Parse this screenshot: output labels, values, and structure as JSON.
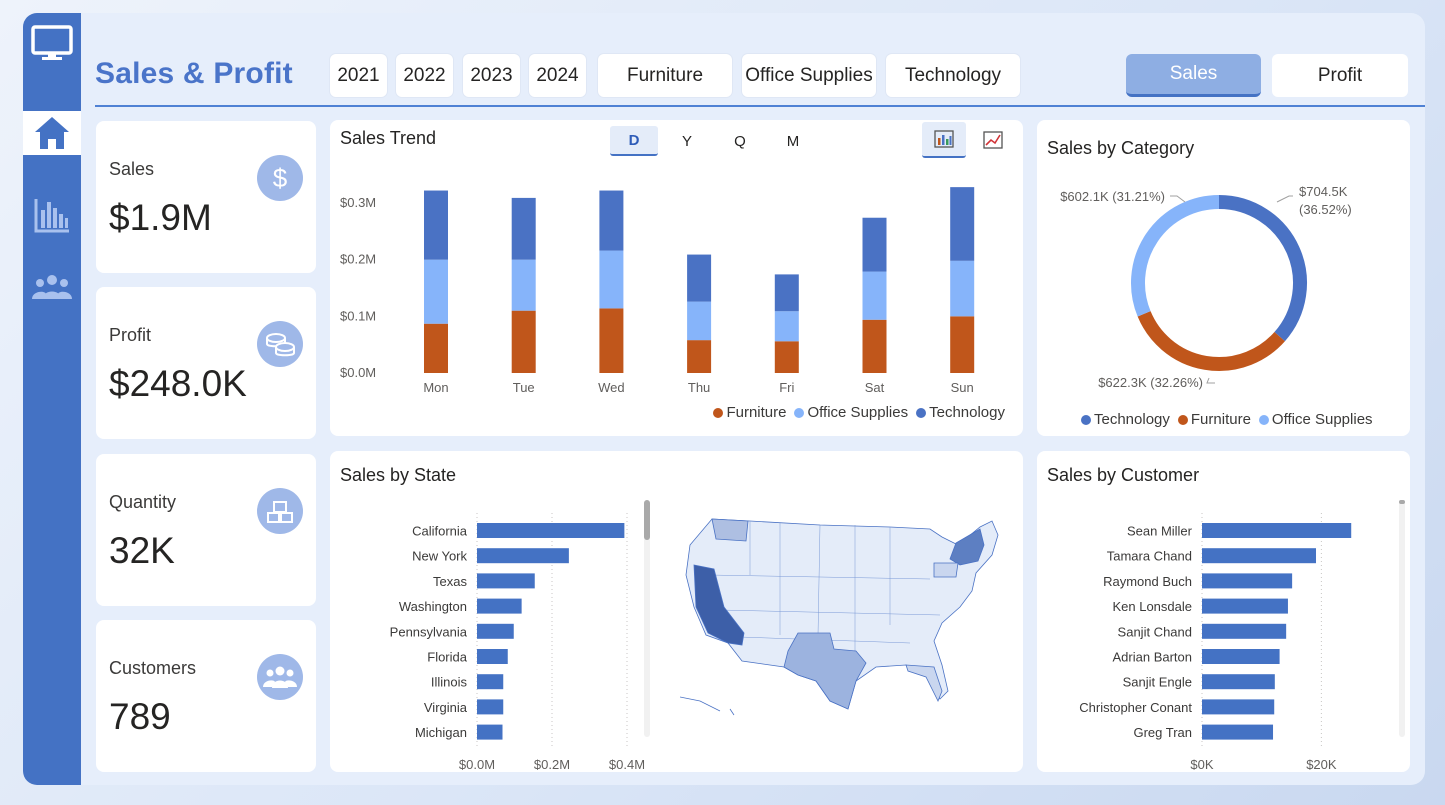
{
  "header": {
    "title": "Sales & Profit",
    "years": [
      "2021",
      "2022",
      "2023",
      "2024"
    ],
    "categories": [
      "Furniture",
      "Office Supplies",
      "Technology"
    ],
    "measure_toggle": {
      "sales": "Sales",
      "profit": "Profit",
      "selected": "Sales"
    }
  },
  "sidebar": {
    "items": [
      {
        "icon": "monitor-icon"
      },
      {
        "icon": "home-icon",
        "active": true
      },
      {
        "icon": "bar-chart-icon"
      },
      {
        "icon": "people-icon"
      }
    ]
  },
  "kpis": [
    {
      "label": "Sales",
      "value": "$1.9M",
      "icon": "dollar-icon"
    },
    {
      "label": "Profit",
      "value": "$248.0K",
      "icon": "coins-icon"
    },
    {
      "label": "Quantity",
      "value": "32K",
      "icon": "boxes-icon"
    },
    {
      "label": "Customers",
      "value": "789",
      "icon": "people-icon"
    }
  ],
  "sales_trend": {
    "title": "Sales Trend",
    "tabs": [
      "D",
      "Y",
      "Q",
      "M"
    ],
    "active_tab": "D",
    "view_buttons": [
      "column-chart-icon",
      "line-chart-icon"
    ]
  },
  "sales_by_category": {
    "title": "Sales by Category",
    "labels": {
      "technology": "$704.5K",
      "technology_pct": "(36.52%)",
      "office": "$602.1K (31.21%)",
      "furniture": "$622.3K (32.26%)"
    }
  },
  "sales_by_state": {
    "title": "Sales by State"
  },
  "sales_by_customer": {
    "title": "Sales by Customer"
  },
  "colors": {
    "furniture": "#c0561b",
    "office_supplies": "#86b4fa",
    "technology": "#4a72c4",
    "accent": "#4472c4"
  },
  "chart_data": [
    {
      "id": "sales-trend",
      "type": "bar",
      "stacked": true,
      "title": "Sales Trend",
      "categories": [
        "Mon",
        "Tue",
        "Wed",
        "Thu",
        "Fri",
        "Sat",
        "Sun"
      ],
      "series": [
        {
          "name": "Furniture",
          "values": [
            0.087,
            0.11,
            0.114,
            0.058,
            0.056,
            0.094,
            0.1
          ]
        },
        {
          "name": "Office Supplies",
          "values": [
            0.113,
            0.09,
            0.102,
            0.068,
            0.053,
            0.085,
            0.098
          ]
        },
        {
          "name": "Technology",
          "values": [
            0.122,
            0.109,
            0.106,
            0.083,
            0.065,
            0.095,
            0.13
          ]
        }
      ],
      "yticks": [
        "$0.0M",
        "$0.1M",
        "$0.2M",
        "$0.3M"
      ],
      "ylim": [
        0,
        0.33
      ],
      "legend_position": "bottom-right"
    },
    {
      "id": "sales-by-category",
      "type": "pie",
      "donut": true,
      "title": "Sales by Category",
      "labels": [
        "Technology",
        "Furniture",
        "Office Supplies"
      ],
      "values": [
        704.5,
        622.3,
        602.1
      ],
      "percents": [
        36.52,
        32.26,
        31.21
      ],
      "legend_position": "bottom"
    },
    {
      "id": "sales-by-state",
      "type": "bar",
      "orientation": "horizontal",
      "title": "Sales by State",
      "categories": [
        "California",
        "New York",
        "Texas",
        "Washington",
        "Pennsylvania",
        "Florida",
        "Illinois",
        "Virginia",
        "Michigan"
      ],
      "values": [
        0.393,
        0.245,
        0.154,
        0.119,
        0.098,
        0.082,
        0.07,
        0.07,
        0.068
      ],
      "xticks": [
        "$0.0M",
        "$0.2M",
        "$0.4M"
      ],
      "xlim": [
        0,
        0.4
      ]
    },
    {
      "id": "sales-by-customer",
      "type": "bar",
      "orientation": "horizontal",
      "title": "Sales by Customer",
      "categories": [
        "Sean Miller",
        "Tamara Chand",
        "Raymond Buch",
        "Ken Lonsdale",
        "Sanjit Chand",
        "Adrian Barton",
        "Sanjit Engle",
        "Christopher Conant",
        "Greg Tran"
      ],
      "values": [
        25.0,
        19.1,
        15.1,
        14.4,
        14.1,
        13.0,
        12.2,
        12.1,
        11.9
      ],
      "xticks": [
        "$0K",
        "$20K"
      ],
      "xlim": [
        0,
        32
      ]
    }
  ]
}
